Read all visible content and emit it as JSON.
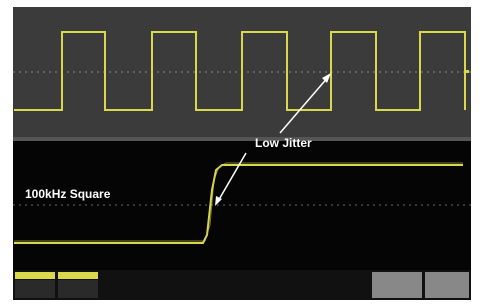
{
  "annotations": {
    "arrow_label": "Low Jitter",
    "signal_label": "100kHz Square"
  }
}
